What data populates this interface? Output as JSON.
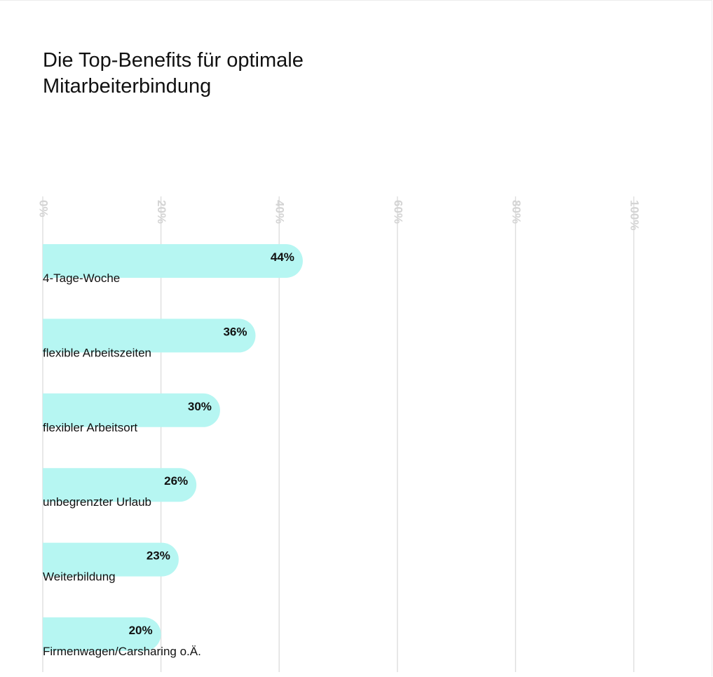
{
  "chart_data": {
    "type": "bar",
    "orientation": "horizontal",
    "title": "Die Top-Benefits für optimale Mitarbeiterbindung",
    "xlim": [
      0,
      100
    ],
    "xticks": [
      0,
      20,
      40,
      60,
      80,
      100
    ],
    "xtick_labels": [
      "0%",
      "20%",
      "40%",
      "60%",
      "80%",
      "100%"
    ],
    "grid": true,
    "categories": [
      "4-Tage-Woche",
      "flexible Arbeitszeiten",
      "flexibler Arbeitsort",
      "unbegrenzter Urlaub",
      "Weiterbildung",
      "Firmenwagen/Carsharing o.Ä."
    ],
    "values": [
      44,
      36,
      30,
      26,
      23,
      20
    ],
    "value_labels": [
      "44%",
      "36%",
      "30%",
      "26%",
      "23%",
      "20%"
    ],
    "colors": {
      "bar": "#b6f6f2",
      "grid": "#dedede",
      "tick": "#d4d4d4",
      "text": "#111111"
    }
  }
}
